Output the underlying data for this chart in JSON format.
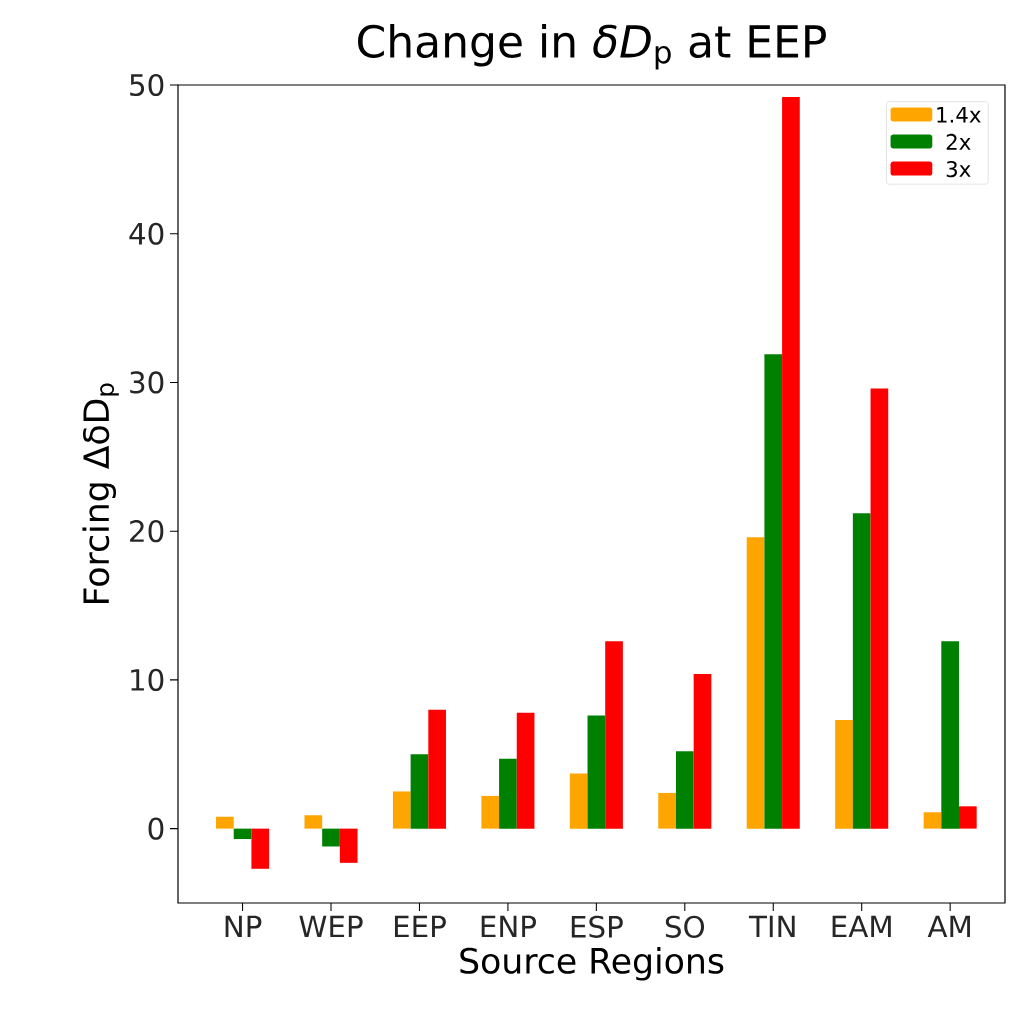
{
  "chart_data": {
    "type": "bar",
    "title": "Change in *δD*$_{p}$ at EEP",
    "xlabel": "Source Regions",
    "ylabel": "Forcing ΔδD$_{p}$",
    "categories": [
      "NP",
      "WEP",
      "EEP",
      "ENP",
      "ESP",
      "SO",
      "TIN",
      "EAM",
      "AM"
    ],
    "series": [
      {
        "name": "1.4x",
        "color": "#ffa500",
        "values": [
          0.8,
          0.9,
          2.5,
          2.2,
          3.7,
          2.4,
          19.6,
          7.3,
          1.1
        ]
      },
      {
        "name": "2x",
        "color": "#008000",
        "values": [
          -0.7,
          -1.2,
          5.0,
          4.7,
          7.6,
          5.2,
          31.9,
          21.2,
          12.6
        ]
      },
      {
        "name": "3x",
        "color": "#ff0000",
        "values": [
          -2.7,
          -2.3,
          8.0,
          7.8,
          12.6,
          10.4,
          49.2,
          29.6,
          1.5
        ]
      }
    ],
    "ylim": [
      -5,
      50
    ],
    "yticks": [
      0,
      10,
      20,
      30,
      40,
      50
    ],
    "legend": "top right"
  }
}
